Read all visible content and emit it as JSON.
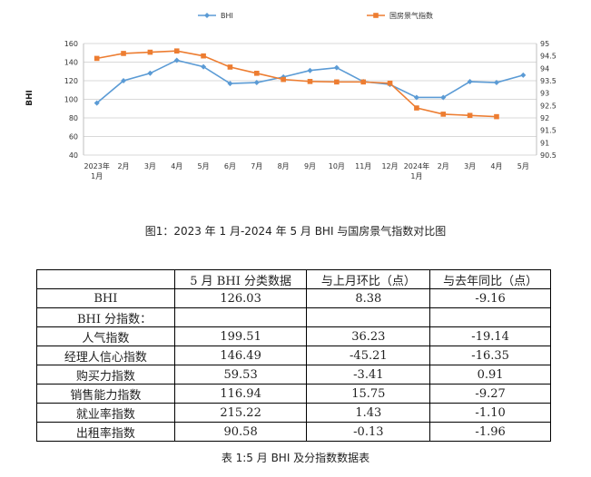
{
  "chart_data": {
    "type": "line",
    "categories": [
      "2023年\n1月",
      "2月",
      "3月",
      "4月",
      "5月",
      "6月",
      "7月",
      "8月",
      "9月",
      "10月",
      "11月",
      "12月",
      "2024年\n1月",
      "2月",
      "3月",
      "4月",
      "5月"
    ],
    "series": [
      {
        "name": "BHI",
        "axis": "left",
        "color": "#5b9bd5",
        "marker": "diamond",
        "values": [
          96,
          120,
          128,
          142,
          135,
          117,
          118,
          124,
          131,
          134,
          119,
          116,
          102,
          102,
          119,
          118,
          126
        ]
      },
      {
        "name": "国房景气指数",
        "axis": "right",
        "color": "#ed7d31",
        "marker": "square",
        "values": [
          94.4,
          94.6,
          94.65,
          94.7,
          94.5,
          94.05,
          93.8,
          93.55,
          93.47,
          93.45,
          93.45,
          93.4,
          92.4,
          92.15,
          92.1,
          92.05,
          null
        ]
      }
    ],
    "yleft": {
      "label": "BHI",
      "min": 40,
      "max": 160,
      "ticks": [
        40,
        60,
        80,
        100,
        120,
        140,
        160
      ]
    },
    "yright": {
      "min": 90.5,
      "max": 95,
      "ticks": [
        "90.5",
        "91",
        "91.5",
        "92",
        "92.5",
        "93",
        "93.5",
        "94",
        "94.5",
        "95"
      ]
    },
    "legend_position": "top",
    "grid": true
  },
  "figure_caption": "图1：2023 年 1 月-2024 年 5 月 BHI 与国房景气指数对比图",
  "table": {
    "headers": [
      "",
      "5 月 BHI 分类数据",
      "与上月环比（点）",
      "与去年同比（点）"
    ],
    "rows": [
      {
        "name": "BHI",
        "v1": "126.03",
        "v2": "8.38",
        "v3": "-9.16"
      },
      {
        "section": "BHI 分指数："
      },
      {
        "name": "人气指数",
        "v1": "199.51",
        "v2": "36.23",
        "v3": "-19.14"
      },
      {
        "name": "经理人信心指数",
        "v1": "146.49",
        "v2": "-45.21",
        "v3": "-16.35"
      },
      {
        "name": "购买力指数",
        "v1": "59.53",
        "v2": "-3.41",
        "v3": "0.91"
      },
      {
        "name": "销售能力指数",
        "v1": "116.94",
        "v2": "15.75",
        "v3": "-9.27"
      },
      {
        "name": "就业率指数",
        "v1": "215.22",
        "v2": "1.43",
        "v3": "-1.10"
      },
      {
        "name": "出租率指数",
        "v1": "90.58",
        "v2": "-0.13",
        "v3": "-1.96"
      }
    ]
  },
  "table_caption": "表 1:5 月 BHI 及分指数数据表"
}
